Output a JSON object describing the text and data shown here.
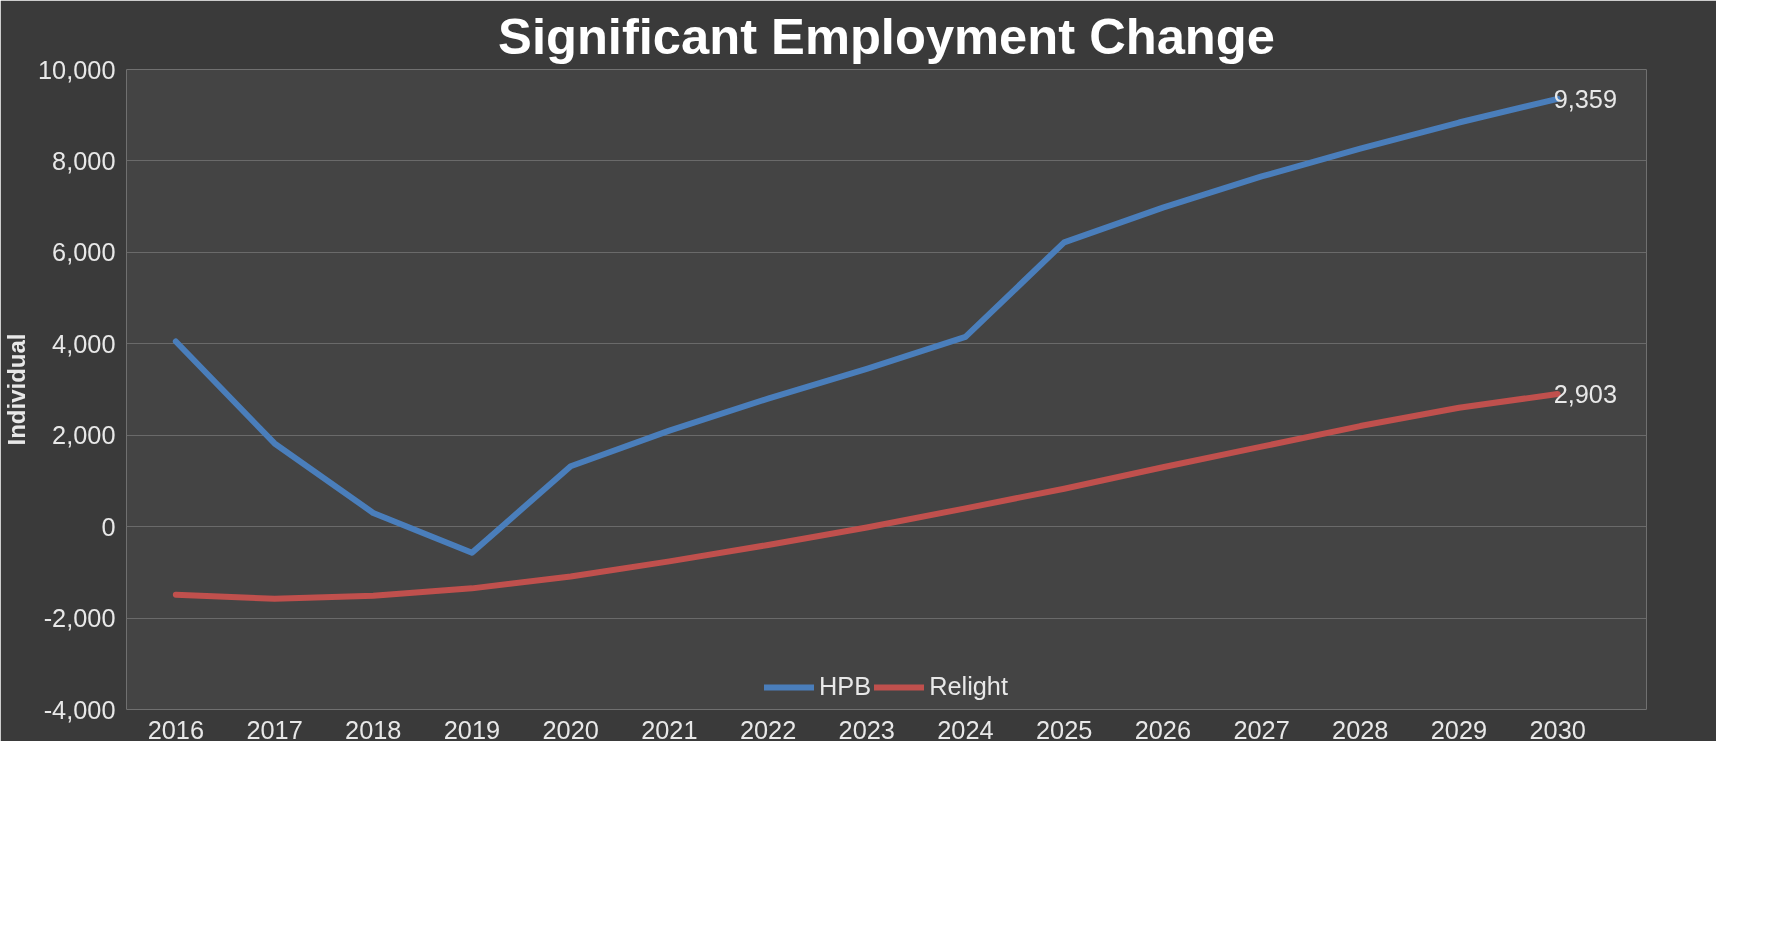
{
  "chart_data": {
    "type": "line",
    "title": "Significant Employment Change",
    "ylabel": "Individual",
    "categories": [
      "2016",
      "2017",
      "2018",
      "2019",
      "2020",
      "2021",
      "2022",
      "2023",
      "2024",
      "2025",
      "2026",
      "2027",
      "2028",
      "2029",
      "2030"
    ],
    "series": [
      {
        "name": "HPB",
        "color": "#4a7ebb",
        "values": [
          4050,
          1820,
          300,
          -570,
          1320,
          2100,
          2800,
          3450,
          4150,
          6220,
          6980,
          7660,
          8270,
          8840,
          9359
        ],
        "value_labels": [
          null,
          null,
          null,
          null,
          null,
          null,
          null,
          null,
          null,
          null,
          null,
          null,
          null,
          null,
          "9,359"
        ]
      },
      {
        "name": "Relight",
        "color": "#c0504d",
        "values": [
          -1490,
          -1580,
          -1510,
          -1350,
          -1090,
          -760,
          -400,
          -20,
          400,
          830,
          1300,
          1750,
          2200,
          2600,
          2903
        ],
        "value_labels": [
          null,
          null,
          null,
          null,
          null,
          null,
          null,
          null,
          null,
          null,
          null,
          null,
          null,
          null,
          "2,903"
        ]
      }
    ],
    "ylim": [
      -4000,
      10000
    ],
    "yticks": [
      {
        "value": -4000,
        "label": "-4,000"
      },
      {
        "value": -2000,
        "label": "-2,000"
      },
      0,
      {
        "value": 2000,
        "label": "2,000"
      },
      {
        "value": 4000,
        "label": "4,000"
      },
      {
        "value": 6000,
        "label": "6,000"
      },
      {
        "value": 8000,
        "label": "8,000"
      },
      {
        "value": 10000,
        "label": "10,000"
      }
    ],
    "grid": "y",
    "legend": "bottom",
    "marker": "none",
    "line_style": "solid"
  }
}
